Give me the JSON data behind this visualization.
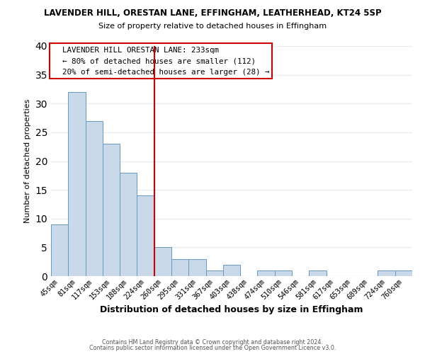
{
  "title1": "LAVENDER HILL, ORESTAN LANE, EFFINGHAM, LEATHERHEAD, KT24 5SP",
  "title2": "Size of property relative to detached houses in Effingham",
  "xlabel": "Distribution of detached houses by size in Effingham",
  "ylabel": "Number of detached properties",
  "bar_color": "#c9d9ea",
  "bar_edge_color": "#6699bb",
  "categories": [
    "45sqm",
    "81sqm",
    "117sqm",
    "153sqm",
    "188sqm",
    "224sqm",
    "260sqm",
    "295sqm",
    "331sqm",
    "367sqm",
    "403sqm",
    "438sqm",
    "474sqm",
    "510sqm",
    "546sqm",
    "581sqm",
    "617sqm",
    "653sqm",
    "689sqm",
    "724sqm",
    "760sqm"
  ],
  "values": [
    9,
    32,
    27,
    23,
    18,
    14,
    5,
    3,
    3,
    1,
    2,
    0,
    1,
    1,
    0,
    1,
    0,
    0,
    0,
    1,
    1
  ],
  "ylim": [
    0,
    40
  ],
  "yticks": [
    0,
    5,
    10,
    15,
    20,
    25,
    30,
    35,
    40
  ],
  "vline_x": 5.5,
  "vline_color": "#cc0000",
  "annotation_title": "LAVENDER HILL ORESTAN LANE: 233sqm",
  "annotation_line1": "← 80% of detached houses are smaller (112)",
  "annotation_line2": "20% of semi-detached houses are larger (28) →",
  "footer1": "Contains HM Land Registry data © Crown copyright and database right 2024.",
  "footer2": "Contains public sector information licensed under the Open Government Licence v3.0.",
  "background_color": "#ffffff",
  "grid_color": "#e8edf2"
}
